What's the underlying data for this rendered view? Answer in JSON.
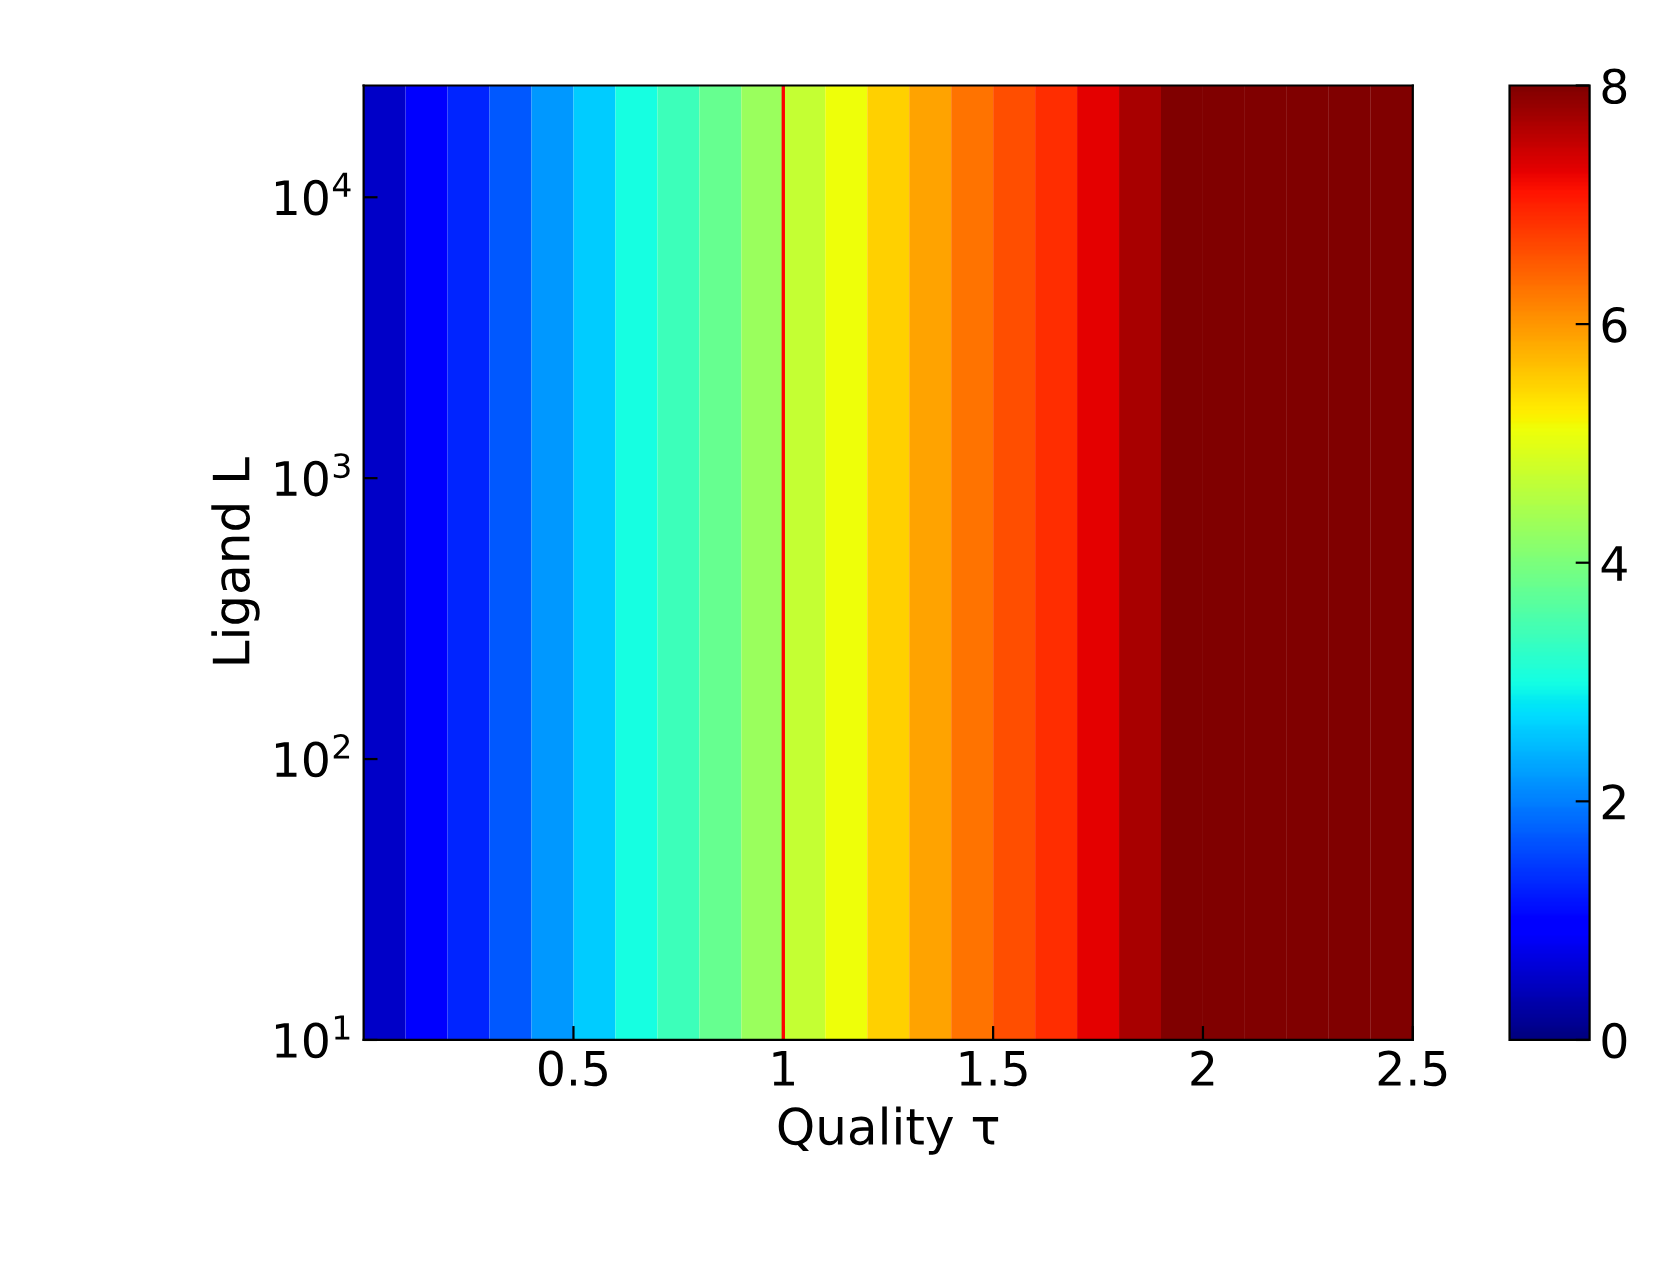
{
  "chart_data": {
    "type": "heatmap",
    "xlabel": "Quality τ",
    "ylabel": "Ligand L",
    "x": [
      0.05,
      0.15,
      0.25,
      0.35,
      0.45,
      0.55,
      0.65,
      0.75,
      0.85,
      0.95,
      1.05,
      1.15,
      1.25,
      1.35,
      1.45,
      1.55,
      1.65,
      1.75,
      1.85,
      1.95,
      2.05,
      2.15,
      2.25,
      2.35,
      2.45
    ],
    "cells": [
      [
        0.5,
        0.9,
        1.3,
        1.7,
        2.2,
        2.6,
        3.0,
        3.4,
        3.8,
        4.3,
        4.7,
        5.1,
        5.5,
        5.9,
        6.3,
        6.6,
        6.9,
        7.3,
        7.7,
        8,
        8,
        8,
        8,
        8,
        8
      ]
    ],
    "xlim": [
      0,
      2.5
    ],
    "xticks": [
      0.5,
      1,
      1.5,
      2,
      2.5
    ],
    "log": "y",
    "ylim": [
      10,
      25000
    ],
    "yticks": [
      {
        "value": 10,
        "label": "10$^{1}$"
      },
      {
        "value": 100,
        "label": "10$^{2}$"
      },
      {
        "value": 1000,
        "label": "10$^{3}$"
      },
      {
        "value": 10000,
        "label": "10$^{4}$"
      }
    ],
    "clim": [
      0,
      8
    ],
    "cticks": [
      0,
      2,
      4,
      6,
      8
    ],
    "ref_lines": [
      {
        "axis": "x",
        "value": 1,
        "label": null,
        "color": "#ff0000"
      }
    ],
    "grid": false
  }
}
